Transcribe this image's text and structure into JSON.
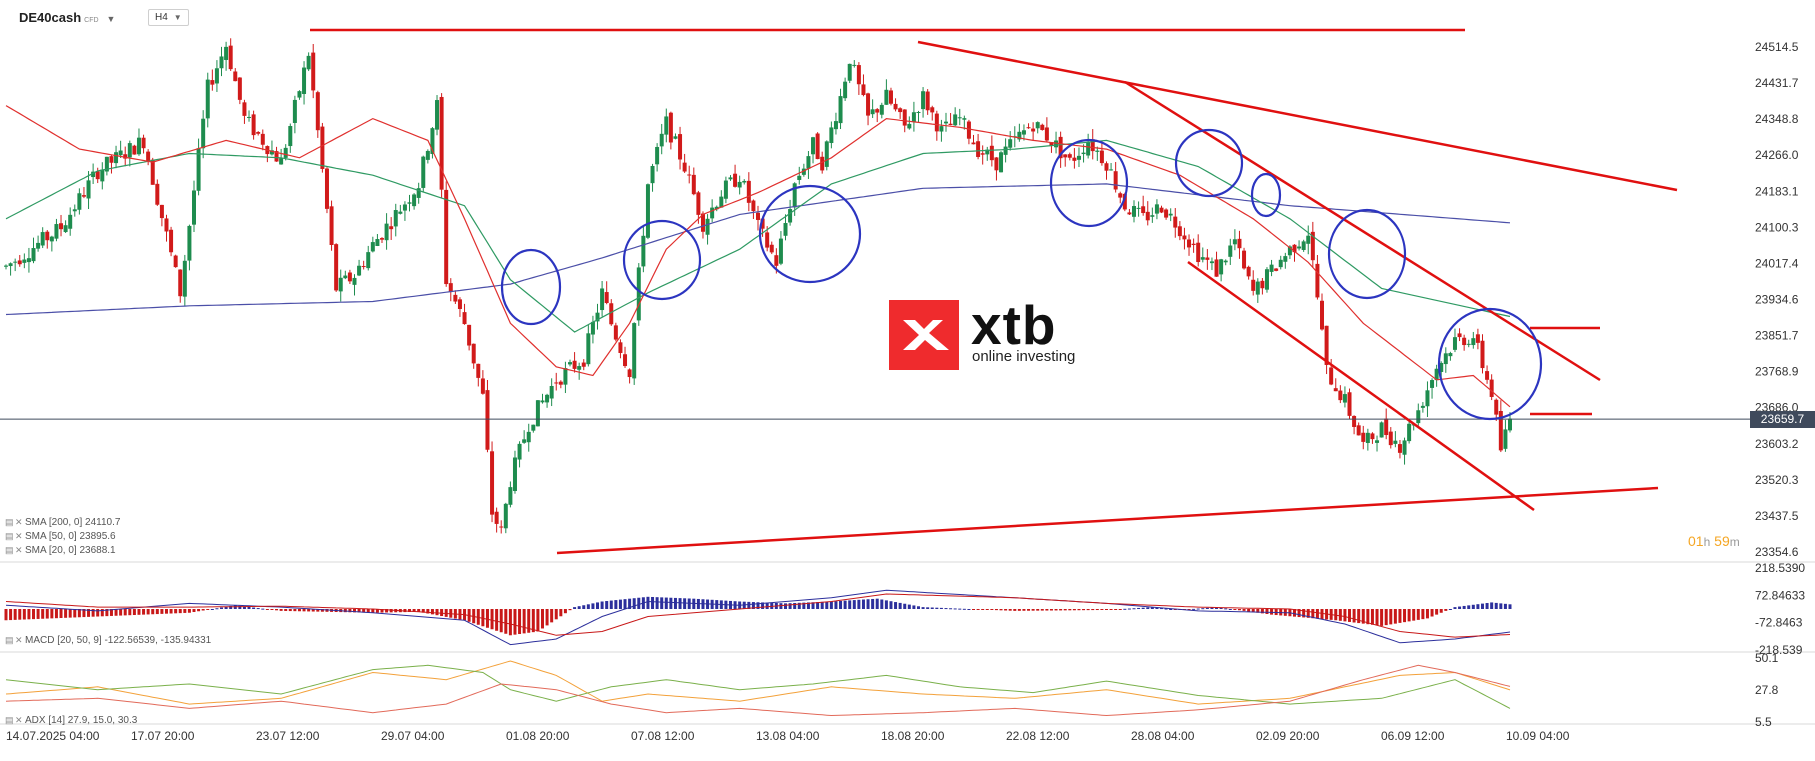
{
  "header": {
    "symbol": "DE40cash",
    "symbol_suffix": "CFD",
    "timeframe": "H4"
  },
  "logo": {
    "brand": "xtb",
    "tagline": "online investing"
  },
  "countdown": {
    "hours": "01",
    "h_unit": "h",
    "minutes": "59",
    "m_unit": "m"
  },
  "indicators": {
    "sma200": "SMA [200, 0] 24110.7",
    "sma50": "SMA [50, 0] 23895.6",
    "sma20": "SMA [20, 0] 23688.1",
    "macd": "MACD [20, 50, 9] -122.56539, -135.94331",
    "adx": "ADX [14] 27.9, 15.0, 30.3"
  },
  "colors": {
    "bull": "#1e8c4e",
    "bear": "#d11a1a",
    "sma200": "#4b4fa8",
    "sma50": "#2f9a63",
    "sma20": "#e0302e",
    "drawing_lines": "#e01010",
    "drawing_circles": "#2c35c0",
    "macd_pos": "#2c2f9c",
    "macd_neg": "#c81818",
    "adx_green": "#7ab04a",
    "adx_red": "#e26a5a",
    "adx_orange": "#f3a13a",
    "price_line": "#3f4a5c"
  },
  "chart_data": [
    {
      "type": "candlestick",
      "name": "DE40cash H4",
      "price_axis": {
        "ticks": [
          "24514.5",
          "24431.7",
          "24348.8",
          "24266.0",
          "24183.1",
          "24100.3",
          "24017.4",
          "23934.6",
          "23851.7",
          "23768.9",
          "23686.0",
          "23603.2",
          "23520.3",
          "23437.5",
          "23354.6"
        ],
        "range": [
          23354.6,
          24514.5
        ],
        "current_price": "23659.7"
      },
      "time_axis": {
        "labels": [
          "14.07.2025 04:00",
          "17.07 20:00",
          "23.07 12:00",
          "29.07 04:00",
          "01.08 20:00",
          "07.08 12:00",
          "13.08 04:00",
          "18.08 20:00",
          "22.08 12:00",
          "28.08 04:00",
          "02.09 20:00",
          "06.09 12:00",
          "10.09 04:00"
        ]
      },
      "path_points": [
        [
          0,
          24010
        ],
        [
          6,
          24100
        ],
        [
          10,
          24230
        ],
        [
          15,
          24300
        ],
        [
          19,
          23950
        ],
        [
          22,
          24420
        ],
        [
          24,
          24520
        ],
        [
          26,
          24350
        ],
        [
          30,
          24250
        ],
        [
          33,
          24500
        ],
        [
          36,
          23960
        ],
        [
          38,
          23990
        ],
        [
          40,
          24060
        ],
        [
          45,
          24200
        ],
        [
          47,
          24380
        ],
        [
          48,
          23980
        ],
        [
          50,
          23880
        ],
        [
          52,
          23710
        ],
        [
          53,
          23445
        ],
        [
          54,
          23400
        ],
        [
          55,
          23520
        ],
        [
          57,
          23650
        ],
        [
          60,
          23750
        ],
        [
          63,
          23800
        ],
        [
          65,
          23950
        ],
        [
          66,
          23880
        ],
        [
          68,
          23770
        ],
        [
          69,
          23990
        ],
        [
          70,
          24200
        ],
        [
          72,
          24340
        ],
        [
          74,
          24240
        ],
        [
          76,
          24110
        ],
        [
          78,
          24180
        ],
        [
          80,
          24220
        ],
        [
          82,
          24100
        ],
        [
          84,
          24020
        ],
        [
          86,
          24200
        ],
        [
          88,
          24290
        ],
        [
          89,
          24250
        ],
        [
          91,
          24400
        ],
        [
          92,
          24490
        ],
        [
          94,
          24350
        ],
        [
          96,
          24400
        ],
        [
          98,
          24330
        ],
        [
          100,
          24400
        ],
        [
          102,
          24320
        ],
        [
          104,
          24350
        ],
        [
          106,
          24280
        ],
        [
          108,
          24250
        ],
        [
          110,
          24300
        ],
        [
          112,
          24340
        ],
        [
          114,
          24300
        ],
        [
          116,
          24250
        ],
        [
          118,
          24300
        ],
        [
          120,
          24250
        ],
        [
          122,
          24150
        ],
        [
          124,
          24120
        ],
        [
          126,
          24150
        ],
        [
          128,
          24100
        ],
        [
          130,
          24040
        ],
        [
          132,
          24000
        ],
        [
          134,
          24070
        ],
        [
          135,
          24000
        ],
        [
          136,
          23950
        ],
        [
          138,
          24000
        ],
        [
          140,
          24050
        ],
        [
          142,
          24090
        ],
        [
          143,
          23940
        ],
        [
          144,
          23770
        ],
        [
          146,
          23700
        ],
        [
          148,
          23600
        ],
        [
          150,
          23640
        ],
        [
          152,
          23600
        ],
        [
          154,
          23680
        ],
        [
          156,
          23780
        ],
        [
          158,
          23840
        ],
        [
          160,
          23850
        ],
        [
          162,
          23720
        ],
        [
          163,
          23590
        ],
        [
          164,
          23659.7
        ]
      ],
      "sma200": [
        [
          0,
          23900
        ],
        [
          20,
          23920
        ],
        [
          40,
          23930
        ],
        [
          55,
          23970
        ],
        [
          65,
          24030
        ],
        [
          80,
          24130
        ],
        [
          100,
          24190
        ],
        [
          120,
          24200
        ],
        [
          140,
          24150
        ],
        [
          164,
          24110.7
        ]
      ],
      "sma50": [
        [
          0,
          24120
        ],
        [
          10,
          24230
        ],
        [
          20,
          24270
        ],
        [
          30,
          24260
        ],
        [
          40,
          24220
        ],
        [
          50,
          24150
        ],
        [
          55,
          23980
        ],
        [
          62,
          23860
        ],
        [
          70,
          23950
        ],
        [
          80,
          24050
        ],
        [
          90,
          24200
        ],
        [
          100,
          24270
        ],
        [
          110,
          24280
        ],
        [
          120,
          24300
        ],
        [
          130,
          24240
        ],
        [
          140,
          24120
        ],
        [
          150,
          23960
        ],
        [
          164,
          23895.6
        ]
      ],
      "sma20": [
        [
          0,
          24380
        ],
        [
          8,
          24280
        ],
        [
          16,
          24250
        ],
        [
          24,
          24300
        ],
        [
          32,
          24260
        ],
        [
          40,
          24350
        ],
        [
          46,
          24300
        ],
        [
          50,
          24120
        ],
        [
          55,
          23880
        ],
        [
          60,
          23780
        ],
        [
          64,
          23760
        ],
        [
          68,
          23880
        ],
        [
          72,
          24050
        ],
        [
          76,
          24130
        ],
        [
          82,
          24180
        ],
        [
          90,
          24260
        ],
        [
          96,
          24350
        ],
        [
          104,
          24330
        ],
        [
          112,
          24300
        ],
        [
          120,
          24280
        ],
        [
          128,
          24220
        ],
        [
          136,
          24120
        ],
        [
          142,
          24020
        ],
        [
          148,
          23880
        ],
        [
          156,
          23750
        ],
        [
          160,
          23760
        ],
        [
          164,
          23688.1
        ]
      ],
      "annotations": {
        "horizontal_resistance": "24500",
        "drawn_lines": "resistance, falling channel, rising support, circled pullbacks"
      }
    },
    {
      "type": "histogram",
      "name": "MACD",
      "axis_ticks": [
        "218.5390",
        "72.84633",
        "-72.8463",
        "-218.539"
      ],
      "range": [
        -218.539,
        218.539
      ],
      "histogram": [
        [
          0,
          -60
        ],
        [
          10,
          -40
        ],
        [
          20,
          -20
        ],
        [
          25,
          20
        ],
        [
          30,
          -10
        ],
        [
          40,
          -20
        ],
        [
          45,
          -15
        ],
        [
          50,
          -60
        ],
        [
          55,
          -140
        ],
        [
          58,
          -120
        ],
        [
          62,
          10
        ],
        [
          65,
          40
        ],
        [
          70,
          65
        ],
        [
          75,
          55
        ],
        [
          80,
          40
        ],
        [
          85,
          30
        ],
        [
          90,
          40
        ],
        [
          95,
          55
        ],
        [
          100,
          10
        ],
        [
          110,
          -10
        ],
        [
          120,
          -5
        ],
        [
          125,
          10
        ],
        [
          128,
          -5
        ],
        [
          132,
          10
        ],
        [
          138,
          -30
        ],
        [
          145,
          -60
        ],
        [
          150,
          -90
        ],
        [
          155,
          -50
        ],
        [
          158,
          10
        ],
        [
          162,
          35
        ],
        [
          164,
          25
        ]
      ],
      "macd_line": [
        [
          0,
          20
        ],
        [
          10,
          -10
        ],
        [
          20,
          30
        ],
        [
          30,
          10
        ],
        [
          40,
          -20
        ],
        [
          50,
          -60
        ],
        [
          55,
          -190
        ],
        [
          60,
          -160
        ],
        [
          65,
          -40
        ],
        [
          70,
          40
        ],
        [
          80,
          20
        ],
        [
          90,
          60
        ],
        [
          96,
          100
        ],
        [
          110,
          60
        ],
        [
          120,
          30
        ],
        [
          130,
          -10
        ],
        [
          140,
          -20
        ],
        [
          146,
          -80
        ],
        [
          152,
          -180
        ],
        [
          158,
          -160
        ],
        [
          164,
          -122.6
        ]
      ],
      "signal_line": [
        [
          0,
          40
        ],
        [
          10,
          10
        ],
        [
          20,
          10
        ],
        [
          30,
          15
        ],
        [
          40,
          0
        ],
        [
          50,
          -30
        ],
        [
          55,
          -80
        ],
        [
          60,
          -140
        ],
        [
          65,
          -120
        ],
        [
          70,
          -40
        ],
        [
          80,
          0
        ],
        [
          90,
          40
        ],
        [
          96,
          80
        ],
        [
          110,
          60
        ],
        [
          120,
          30
        ],
        [
          130,
          10
        ],
        [
          140,
          0
        ],
        [
          146,
          -40
        ],
        [
          152,
          -120
        ],
        [
          158,
          -150
        ],
        [
          164,
          -135.9
        ]
      ]
    },
    {
      "type": "line",
      "name": "ADX",
      "axis_ticks": [
        "50.1",
        "27.8",
        "5.5"
      ],
      "range": [
        5.5,
        50.1
      ],
      "series": [
        {
          "name": "ADX",
          "values": [
            [
              0,
              25
            ],
            [
              10,
              30
            ],
            [
              20,
              18
            ],
            [
              30,
              22
            ],
            [
              40,
              40
            ],
            [
              48,
              35
            ],
            [
              55,
              48
            ],
            [
              60,
              38
            ],
            [
              65,
              20
            ],
            [
              70,
              25
            ],
            [
              80,
              20
            ],
            [
              90,
              30
            ],
            [
              100,
              25
            ],
            [
              110,
              22
            ],
            [
              120,
              28
            ],
            [
              130,
              18
            ],
            [
              140,
              22
            ],
            [
              146,
              30
            ],
            [
              152,
              38
            ],
            [
              158,
              40
            ],
            [
              164,
              27.9
            ]
          ]
        },
        {
          "name": "+DI",
          "values": [
            [
              0,
              35
            ],
            [
              10,
              28
            ],
            [
              20,
              32
            ],
            [
              30,
              25
            ],
            [
              40,
              42
            ],
            [
              46,
              45
            ],
            [
              52,
              40
            ],
            [
              55,
              28
            ],
            [
              60,
              20
            ],
            [
              66,
              30
            ],
            [
              72,
              35
            ],
            [
              80,
              28
            ],
            [
              88,
              32
            ],
            [
              96,
              38
            ],
            [
              104,
              30
            ],
            [
              112,
              26
            ],
            [
              120,
              34
            ],
            [
              130,
              24
            ],
            [
              140,
              18
            ],
            [
              150,
              22
            ],
            [
              158,
              35
            ],
            [
              164,
              15.0
            ]
          ]
        },
        {
          "name": "-DI",
          "values": [
            [
              0,
              20
            ],
            [
              10,
              22
            ],
            [
              20,
              15
            ],
            [
              30,
              20
            ],
            [
              40,
              12
            ],
            [
              48,
              18
            ],
            [
              54,
              32
            ],
            [
              60,
              28
            ],
            [
              66,
              18
            ],
            [
              72,
              12
            ],
            [
              80,
              15
            ],
            [
              90,
              10
            ],
            [
              100,
              12
            ],
            [
              110,
              15
            ],
            [
              120,
              10
            ],
            [
              130,
              14
            ],
            [
              140,
              20
            ],
            [
              148,
              35
            ],
            [
              154,
              45
            ],
            [
              158,
              40
            ],
            [
              164,
              30.3
            ]
          ]
        }
      ]
    }
  ]
}
